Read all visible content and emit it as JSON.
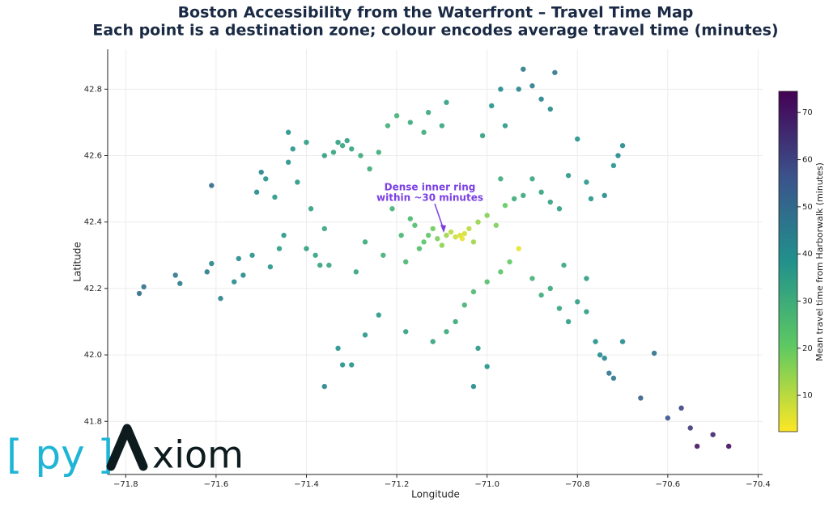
{
  "chart_data": {
    "type": "scatter",
    "title": "Boston Accessibility from the Waterfront – Travel Time Map",
    "subtitle": "Each point is a destination zone; colour encodes average travel time (minutes)",
    "x_label": "Longitude",
    "y_label": "Latitude",
    "colorbar_label": "Mean travel time from Harborwalk (minutes)",
    "annotation": [
      "Dense inner ring",
      "within ~30 minutes"
    ],
    "colormap": "viridis_r",
    "xlim": [
      -71.84,
      -70.39
    ],
    "ylim": [
      41.64,
      42.92
    ],
    "clim": [
      2.3,
      74.5
    ],
    "xticks": [
      {
        "value": -71.8,
        "label": "−71.8"
      },
      {
        "value": -71.6,
        "label": "−71.6"
      },
      {
        "value": -71.4,
        "label": "−71.4"
      },
      {
        "value": -71.2,
        "label": "−71.2"
      },
      {
        "value": -71.0,
        "label": "−71.0"
      },
      {
        "value": -70.8,
        "label": "−70.8"
      },
      {
        "value": -70.6,
        "label": "−70.6"
      },
      {
        "value": -70.4,
        "label": "−70.4"
      }
    ],
    "yticks": [
      41.8,
      {
        "value": 42,
        "label": "42.0"
      },
      42.2,
      42.4,
      42.6,
      42.8
    ],
    "cticks": [
      10,
      20,
      30,
      40,
      50,
      60,
      70
    ],
    "grid": true,
    "x": [
      -71.77,
      -71.76,
      -71.69,
      -71.68,
      -71.62,
      -71.61,
      -71.59,
      -71.61,
      -71.56,
      -71.55,
      -71.54,
      -71.52,
      -71.51,
      -71.5,
      -71.49,
      -71.48,
      -71.47,
      -71.46,
      -71.45,
      -71.44,
      -71.44,
      -71.43,
      -71.42,
      -71.4,
      -71.39,
      -71.4,
      -71.38,
      -71.37,
      -71.36,
      -71.36,
      -71.35,
      -71.34,
      -71.33,
      -71.32,
      -71.31,
      -71.3,
      -71.29,
      -71.28,
      -71.27,
      -71.26,
      -71.24,
      -71.23,
      -71.22,
      -71.21,
      -71.2,
      -71.19,
      -71.18,
      -71.17,
      -71.16,
      -71.15,
      -71.14,
      -71.13,
      -71.12,
      -71.11,
      -71.1,
      -71.09,
      -71.08,
      -71.07,
      -71.06,
      -71.055,
      -71.05,
      -71.04,
      -71.03,
      -71.02,
      -71.0,
      -70.98,
      -70.96,
      -70.93,
      -70.95,
      -70.97,
      -71.0,
      -71.03,
      -71.05,
      -71.07,
      -71.09,
      -71.12,
      -71.18,
      -71.24,
      -71.27,
      -71.3,
      -71.32,
      -71.33,
      -71.36,
      -71.03,
      -71.0,
      -71.02,
      -70.97,
      -70.94,
      -70.92,
      -70.9,
      -70.88,
      -70.86,
      -70.84,
      -70.82,
      -70.8,
      -70.78,
      -70.72,
      -70.71,
      -70.7,
      -70.93,
      -70.92,
      -70.9,
      -70.88,
      -70.86,
      -70.85,
      -70.97,
      -70.96,
      -70.99,
      -71.01,
      -71.09,
      -71.1,
      -71.14,
      -71.17,
      -71.13,
      -70.9,
      -70.88,
      -70.86,
      -70.84,
      -70.82,
      -70.8,
      -70.78,
      -70.76,
      -70.75,
      -70.74,
      -70.7,
      -70.73,
      -70.72,
      -70.66,
      -70.63,
      -70.6,
      -70.57,
      -70.55,
      -70.535,
      -70.5,
      -70.465,
      -70.78,
      -70.74,
      -70.77,
      -70.83
    ],
    "y": [
      42.185,
      42.205,
      42.24,
      42.215,
      42.25,
      42.275,
      42.17,
      42.51,
      42.22,
      42.29,
      42.24,
      42.3,
      42.49,
      42.55,
      42.53,
      42.265,
      42.475,
      42.32,
      42.36,
      42.58,
      42.67,
      42.62,
      42.52,
      42.64,
      42.44,
      42.32,
      42.3,
      42.27,
      42.6,
      42.38,
      42.27,
      42.61,
      42.64,
      42.63,
      42.645,
      42.62,
      42.25,
      42.6,
      42.34,
      42.56,
      42.61,
      42.3,
      42.69,
      42.44,
      42.72,
      42.36,
      42.28,
      42.41,
      42.39,
      42.32,
      42.34,
      42.36,
      42.38,
      42.35,
      42.33,
      42.36,
      42.37,
      42.355,
      42.36,
      42.35,
      42.365,
      42.38,
      42.34,
      42.4,
      42.42,
      42.39,
      42.45,
      42.32,
      42.28,
      42.25,
      42.22,
      42.19,
      42.15,
      42.1,
      42.07,
      42.04,
      42.07,
      42.12,
      42.06,
      41.97,
      41.97,
      42.02,
      41.905,
      41.905,
      41.965,
      42.02,
      42.53,
      42.47,
      42.48,
      42.53,
      42.49,
      42.46,
      42.44,
      42.54,
      42.65,
      42.52,
      42.57,
      42.6,
      42.63,
      42.8,
      42.86,
      42.81,
      42.77,
      42.74,
      42.85,
      42.8,
      42.69,
      42.75,
      42.66,
      42.76,
      42.69,
      42.67,
      42.7,
      42.73,
      42.23,
      42.18,
      42.2,
      42.14,
      42.1,
      42.16,
      42.13,
      42.04,
      42.0,
      41.99,
      42.04,
      41.945,
      41.93,
      41.87,
      42.005,
      41.81,
      41.84,
      41.78,
      41.725,
      41.76,
      41.725,
      42.23,
      42.48,
      42.47,
      42.27
    ],
    "values": [
      50,
      48,
      46,
      45,
      45,
      42,
      43,
      50,
      40,
      40,
      40,
      38,
      40,
      42,
      38,
      37,
      36,
      35,
      36,
      38,
      38,
      37,
      36,
      35,
      34,
      34,
      33,
      33,
      34,
      32,
      32,
      33,
      34,
      33,
      34,
      33,
      33,
      31,
      31,
      30,
      30,
      29,
      29,
      28,
      28,
      27,
      27,
      26,
      25,
      24,
      22,
      21,
      19,
      17,
      15,
      13,
      10,
      8,
      6,
      5,
      7,
      10,
      13,
      14,
      16,
      17,
      20,
      5,
      20,
      22,
      24,
      26,
      28,
      31,
      31,
      33,
      34,
      36,
      36,
      38,
      38,
      38,
      42,
      40,
      38,
      36,
      30,
      30,
      31,
      32,
      33,
      34,
      35,
      36,
      38,
      37,
      38,
      40,
      40,
      42,
      45,
      44,
      42,
      40,
      46,
      40,
      36,
      38,
      34,
      34,
      32,
      30,
      31,
      31,
      28,
      30,
      31,
      33,
      35,
      34,
      35,
      38,
      40,
      42,
      40,
      46,
      46,
      52,
      48,
      56,
      60,
      62,
      70,
      66,
      72,
      35,
      40,
      37,
      32
    ]
  },
  "logo": {
    "left": "[ py ]",
    "right": "xiom"
  }
}
